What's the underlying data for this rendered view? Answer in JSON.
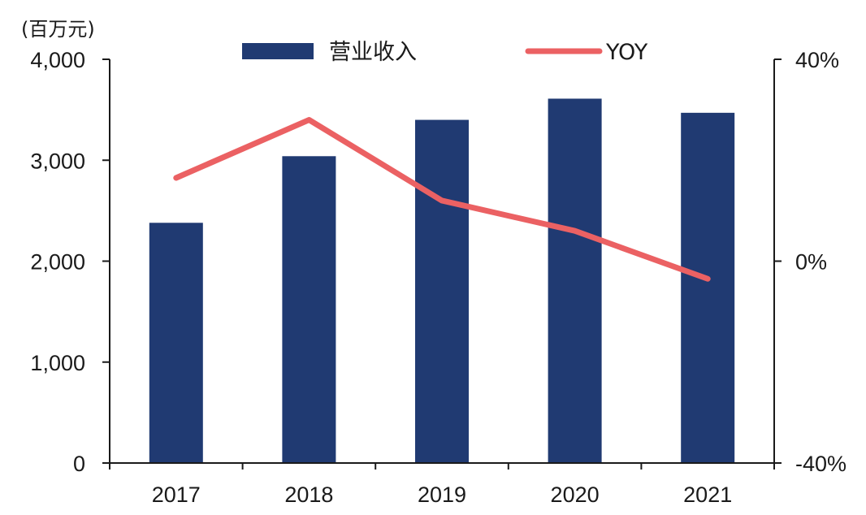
{
  "chart_data": {
    "type": "bar",
    "unit_label": "(百万元)",
    "categories": [
      "2017",
      "2018",
      "2019",
      "2020",
      "2021"
    ],
    "series": [
      {
        "name": "营业收入",
        "type": "bar",
        "axis": "left",
        "color": "#203a72",
        "values": [
          2380,
          3040,
          3400,
          3610,
          3470
        ]
      },
      {
        "name": "YOY",
        "type": "line",
        "axis": "right",
        "color": "#eb6163",
        "values": [
          16.5,
          28.0,
          12.0,
          6.0,
          -3.5
        ]
      }
    ],
    "left_axis": {
      "ylim": [
        0,
        4000
      ],
      "ticks": [
        0,
        1000,
        2000,
        3000,
        4000
      ],
      "tick_labels": [
        "0",
        "1,000",
        "2,000",
        "3,000",
        "4,000"
      ]
    },
    "right_axis": {
      "ylim": [
        -40,
        40
      ],
      "ticks": [
        -40,
        0,
        40
      ],
      "tick_labels": [
        "-40%",
        "0%",
        "40%"
      ]
    },
    "legend_position": "top",
    "grid": false
  }
}
